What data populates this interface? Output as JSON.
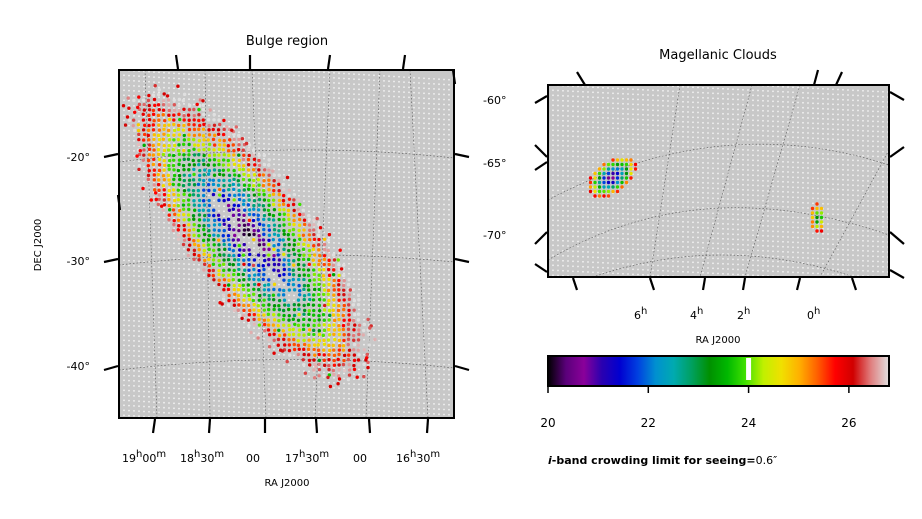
{
  "chart_data": [
    {
      "type": "scatter",
      "title": "Bulge region",
      "xlabel": "RA J2000",
      "ylabel": "DEC J2000",
      "x_ticks": [
        {
          "h": "19",
          "m": "00"
        },
        {
          "h": "18",
          "m": "30"
        },
        {
          "h": "",
          "m": "00",
          "pre": "00"
        },
        {
          "h": "17",
          "m": "30"
        },
        {
          "h": "",
          "m": "00",
          "pre": "00"
        },
        {
          "h": "16",
          "m": "30"
        }
      ],
      "y_ticks": [
        "-20°",
        "-30°",
        "-40°"
      ],
      "dec_range": [
        -45,
        -12
      ],
      "ra_range_hours": [
        19.3,
        16.2
      ],
      "description_of_values": "Galactic bulge footprint; i-band crowding limit per field, colour-coded (20–26.8 mag); deep (purple/blue) near centre, shallow (red) at edges"
    },
    {
      "type": "scatter",
      "title": "Magellanic Clouds",
      "xlabel": "RA J2000",
      "x_ticks": [
        {
          "h": "6"
        },
        {
          "h": "4"
        },
        {
          "h": "2"
        },
        {
          "h": "0"
        }
      ],
      "y_ticks": [
        "-60°",
        "-65°",
        "-70°"
      ],
      "dec_range": [
        -74,
        -58
      ],
      "description_of_values": "LMC crowding limits ~20–26 mag (blue/purple core, red/yellow edges); SMC ~23–26 mag (green/yellow)"
    }
  ],
  "colorbar": {
    "min": 20,
    "max": 26.8,
    "ticks": [
      "20",
      "22",
      "24",
      "26"
    ],
    "marker_value": 24,
    "label_bold": "i-band crowding limit for seeing=",
    "label_value": "0.6″",
    "colors": [
      "#000000",
      "#5a007a",
      "#8a009a",
      "#2a00b0",
      "#0000d0",
      "#0040e0",
      "#0090d0",
      "#00aab0",
      "#00a060",
      "#009000",
      "#00b800",
      "#40e000",
      "#c0f000",
      "#f0e000",
      "#ffb000",
      "#ff6000",
      "#ff0000",
      "#d00000",
      "#e08080",
      "#e0e0e0"
    ]
  }
}
